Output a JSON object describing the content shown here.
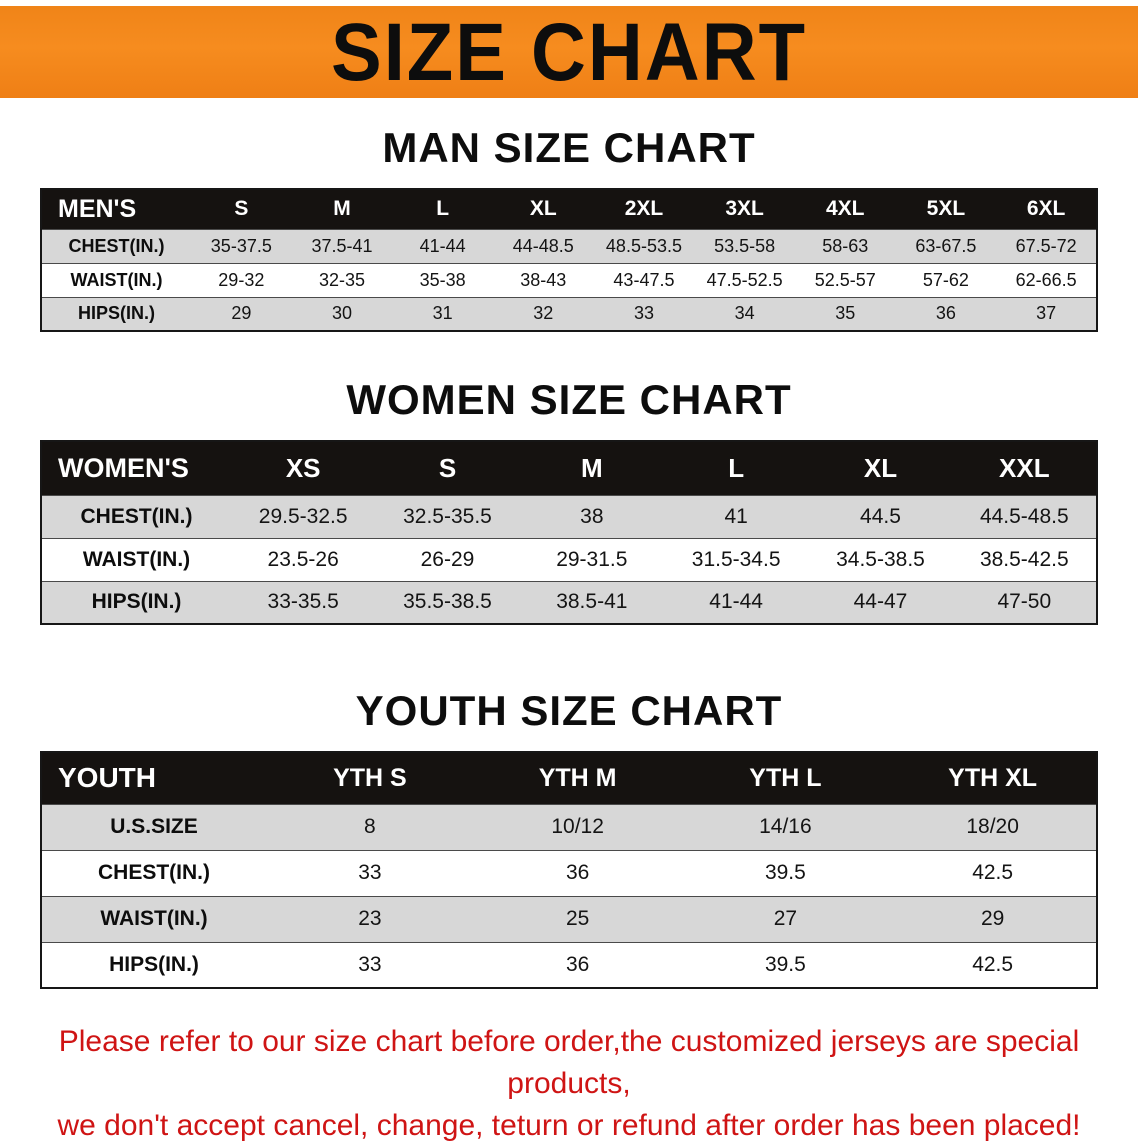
{
  "banner": {
    "title": "SIZE CHART",
    "bg_color": "#f5831d",
    "text_color": "#0d0d0d"
  },
  "colors": {
    "header_bar": "#151210",
    "stripe_gray": "#d7d7d7",
    "notice_red": "#cf1414"
  },
  "chart_data": [
    {
      "type": "table",
      "title": "MAN SIZE CHART",
      "columns": [
        "MEN'S",
        "S",
        "M",
        "L",
        "XL",
        "2XL",
        "3XL",
        "4XL",
        "5XL",
        "6XL"
      ],
      "rows": [
        [
          "CHEST(IN.)",
          "35-37.5",
          "37.5-41",
          "41-44",
          "44-48.5",
          "48.5-53.5",
          "53.5-58",
          "58-63",
          "63-67.5",
          "67.5-72"
        ],
        [
          "WAIST(IN.)",
          "29-32",
          "32-35",
          "35-38",
          "38-43",
          "43-47.5",
          "47.5-52.5",
          "52.5-57",
          "57-62",
          "62-66.5"
        ],
        [
          "HIPS(IN.)",
          "29",
          "30",
          "31",
          "32",
          "33",
          "34",
          "35",
          "36",
          "37"
        ]
      ]
    },
    {
      "type": "table",
      "title": "WOMEN SIZE CHART",
      "columns": [
        "WOMEN'S",
        "XS",
        "S",
        "M",
        "L",
        "XL",
        "XXL"
      ],
      "rows": [
        [
          "CHEST(IN.)",
          "29.5-32.5",
          "32.5-35.5",
          "38",
          "41",
          "44.5",
          "44.5-48.5"
        ],
        [
          "WAIST(IN.)",
          "23.5-26",
          "26-29",
          "29-31.5",
          "31.5-34.5",
          "34.5-38.5",
          "38.5-42.5"
        ],
        [
          "HIPS(IN.)",
          "33-35.5",
          "35.5-38.5",
          "38.5-41",
          "41-44",
          "44-47",
          "47-50"
        ]
      ]
    },
    {
      "type": "table",
      "title": "YOUTH SIZE CHART",
      "columns": [
        "YOUTH",
        "YTH S",
        "YTH M",
        "YTH L",
        "YTH XL"
      ],
      "rows": [
        [
          "U.S.SIZE",
          "8",
          "10/12",
          "14/16",
          "18/20"
        ],
        [
          "CHEST(IN.)",
          "33",
          "36",
          "39.5",
          "42.5"
        ],
        [
          "WAIST(IN.)",
          "23",
          "25",
          "27",
          "29"
        ],
        [
          "HIPS(IN.)",
          "33",
          "36",
          "39.5",
          "42.5"
        ]
      ]
    }
  ],
  "footer": {
    "line1": "Please refer to our size chart before order,the customized jerseys are special products,",
    "line2": "we don't accept cancel, change, teturn or refund after order has been placed!"
  }
}
